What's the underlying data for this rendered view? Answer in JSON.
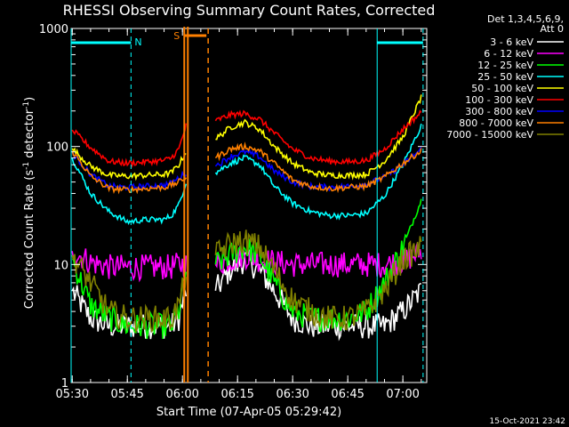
{
  "chart_data": {
    "type": "line",
    "title": "RHESSI Observing Summary Count Rates, Corrected",
    "xlabel": "Start Time (07-Apr-05 05:29:42)",
    "ylabel": "Corrected Count Rate (s",
    "ylabel_sup1": "-1",
    "ylabel_mid": " detector",
    "ylabel_sup2": "-1",
    "ylabel_end": ")",
    "y_scale": "log",
    "ylim": [
      1,
      1000
    ],
    "xlim": [
      "05:29:42",
      "07:06:30"
    ],
    "x_ticks": [
      "05:30",
      "05:45",
      "06:00",
      "06:15",
      "06:30",
      "06:45",
      "07:00"
    ],
    "y_ticks": [
      "1",
      "10",
      "100",
      "1000"
    ],
    "legend_header": [
      "Det 1,3,4,5,6,9,",
      "Att 0"
    ],
    "legend_position": "right",
    "timestamp": "15-Oct-2021 23:42",
    "annotations": {
      "night_label": "N",
      "saa_label": "S",
      "night_intervals": [
        [
          "05:29:42",
          "05:46:00"
        ],
        [
          "06:53:00",
          "07:05:30"
        ]
      ],
      "saa_interval": [
        "06:00:30",
        "06:07:00"
      ],
      "data_gap": [
        "06:01:30",
        "06:09:00"
      ]
    },
    "series": [
      {
        "name": "3 - 6 keV",
        "color": "#ffffff",
        "values": [
          6,
          3.5,
          3,
          3,
          3,
          3,
          3,
          3.5,
          6,
          null,
          6,
          9,
          11,
          9,
          6,
          3.5,
          3,
          3,
          3,
          3,
          3,
          4,
          6
        ]
      },
      {
        "name": "6 - 12 keV",
        "color": "#ff00ff",
        "values": [
          13,
          10.5,
          9.5,
          9.5,
          9.5,
          9.5,
          9.5,
          10,
          10,
          null,
          10,
          11,
          12,
          11,
          10.5,
          10,
          10,
          10,
          10,
          10,
          10,
          10.5,
          13
        ]
      },
      {
        "name": "12 - 25 keV",
        "color": "#00ff00",
        "values": [
          11,
          4.5,
          3.5,
          3,
          3,
          3,
          3,
          4,
          9,
          null,
          10,
          12,
          14,
          12,
          7,
          4,
          3.5,
          3.5,
          3.5,
          4,
          7,
          14,
          35
        ]
      },
      {
        "name": "25 - 50 keV",
        "color": "#00ffff",
        "values": [
          80,
          40,
          28,
          23,
          24,
          24,
          26,
          32,
          50,
          null,
          60,
          72,
          80,
          70,
          46,
          33,
          28,
          26,
          26,
          27,
          38,
          70,
          150
        ]
      },
      {
        "name": "50 - 100 keV",
        "color": "#ffff00",
        "values": [
          96,
          68,
          57,
          56,
          57,
          58,
          60,
          70,
          90,
          null,
          115,
          145,
          160,
          140,
          100,
          72,
          60,
          57,
          57,
          58,
          75,
          120,
          260
        ]
      },
      {
        "name": "100 - 300 keV",
        "color": "#ff0000",
        "values": [
          138,
          98,
          75,
          72,
          74,
          76,
          80,
          95,
          150,
          null,
          165,
          185,
          190,
          170,
          130,
          95,
          80,
          75,
          74,
          76,
          95,
          140,
          195
        ]
      },
      {
        "name": "300 - 800 keV",
        "color": "#0000ff",
        "values": [
          88,
          58,
          46,
          45,
          46,
          47,
          49,
          54,
          60,
          null,
          68,
          82,
          90,
          82,
          62,
          50,
          46,
          45,
          46,
          48,
          55,
          70,
          95
        ]
      },
      {
        "name": "800 - 7000 keV",
        "color": "#ff8000",
        "values": [
          92,
          56,
          44,
          43,
          44,
          45,
          47,
          50,
          55,
          null,
          80,
          95,
          100,
          92,
          72,
          52,
          46,
          44,
          45,
          46,
          55,
          72,
          92
        ]
      },
      {
        "name": "7000 - 15000 keV",
        "color": "#808000",
        "values": [
          12,
          7,
          4,
          3.5,
          3.5,
          3.5,
          3.5,
          4.5,
          8,
          null,
          12,
          15,
          16,
          14,
          9,
          5,
          4,
          3.5,
          3.5,
          4,
          6,
          11,
          14
        ]
      }
    ],
    "x": [
      "05:30",
      "05:35",
      "05:40",
      "05:45",
      "05:50",
      "05:55",
      "05:57",
      "05:59",
      "06:01",
      "06:05",
      "06:09",
      "06:13",
      "06:17",
      "06:21",
      "06:25",
      "06:30",
      "06:35",
      "06:40",
      "06:45",
      "06:50",
      "06:55",
      "07:00",
      "07:05"
    ]
  }
}
